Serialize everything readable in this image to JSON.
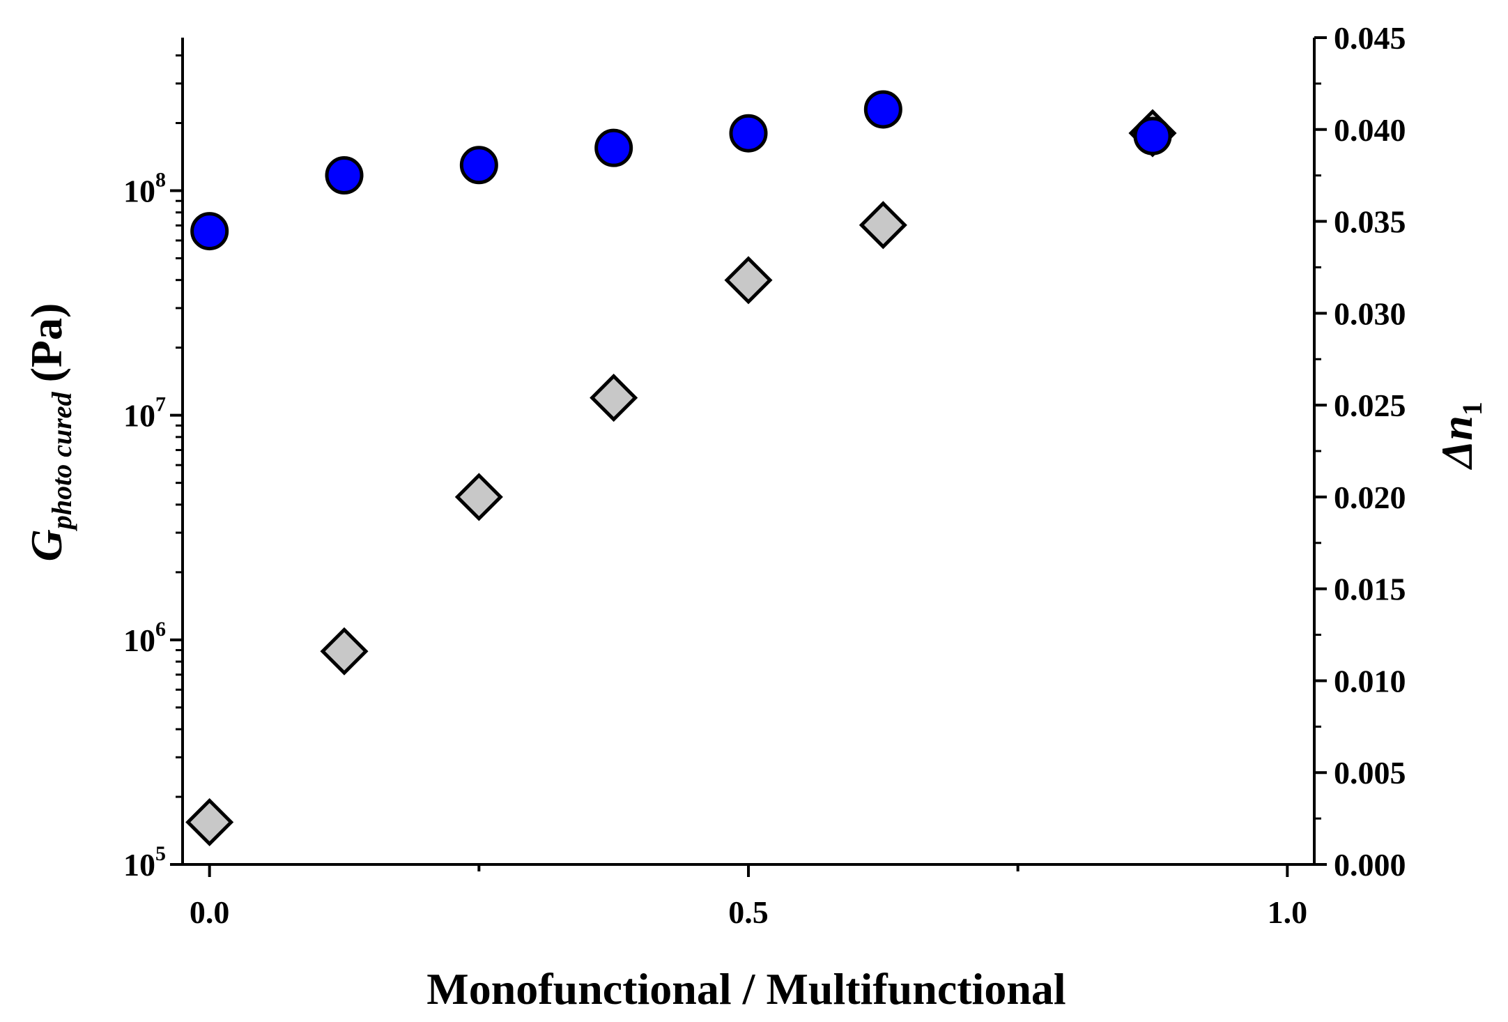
{
  "chart_data": {
    "type": "scatter",
    "title": "",
    "xlabel": "Monofunctional / Multifunctional",
    "ylabel_left": {
      "main": "G",
      "subscript": "photo cured",
      "unit": "(Pa)"
    },
    "ylabel_right": {
      "main": "Δn",
      "subscript": "1"
    },
    "xlim": [
      -0.025,
      1.025
    ],
    "ylim_left": [
      100000,
      480000000
    ],
    "yscale_left": "log",
    "ylim_right": [
      0.0,
      0.045
    ],
    "x_ticks": [
      "0.0",
      "0.5",
      "1.0"
    ],
    "x_tick_values": [
      0.0,
      0.5,
      1.0
    ],
    "y_left_ticks": [
      {
        "base": "10",
        "exp": "5"
      },
      {
        "base": "10",
        "exp": "6"
      },
      {
        "base": "10",
        "exp": "7"
      },
      {
        "base": "10",
        "exp": "8"
      }
    ],
    "y_left_tick_values": [
      100000,
      1000000,
      10000000,
      100000000
    ],
    "y_right_ticks": [
      "0.000",
      "0.005",
      "0.010",
      "0.015",
      "0.020",
      "0.025",
      "0.030",
      "0.035",
      "0.040",
      "0.045"
    ],
    "y_right_tick_values": [
      0.0,
      0.005,
      0.01,
      0.015,
      0.02,
      0.025,
      0.03,
      0.035,
      0.04,
      0.045
    ],
    "grid": false,
    "legend": "none",
    "series": [
      {
        "axis": "left",
        "marker": "circle",
        "color": "#0000ff",
        "x": [
          0.0,
          0.125,
          0.25,
          0.375,
          0.5,
          0.625,
          0.875
        ],
        "y": [
          66000000,
          117000000,
          130000000,
          155000000,
          180000000,
          230000000,
          175000000
        ]
      },
      {
        "axis": "right",
        "marker": "diamond",
        "color": "#c8c8c8",
        "x": [
          0.0,
          0.125,
          0.25,
          0.375,
          0.5,
          0.625,
          0.875
        ],
        "y": [
          0.0023,
          0.0116,
          0.02,
          0.0254,
          0.0318,
          0.0348,
          0.0398
        ]
      }
    ]
  }
}
